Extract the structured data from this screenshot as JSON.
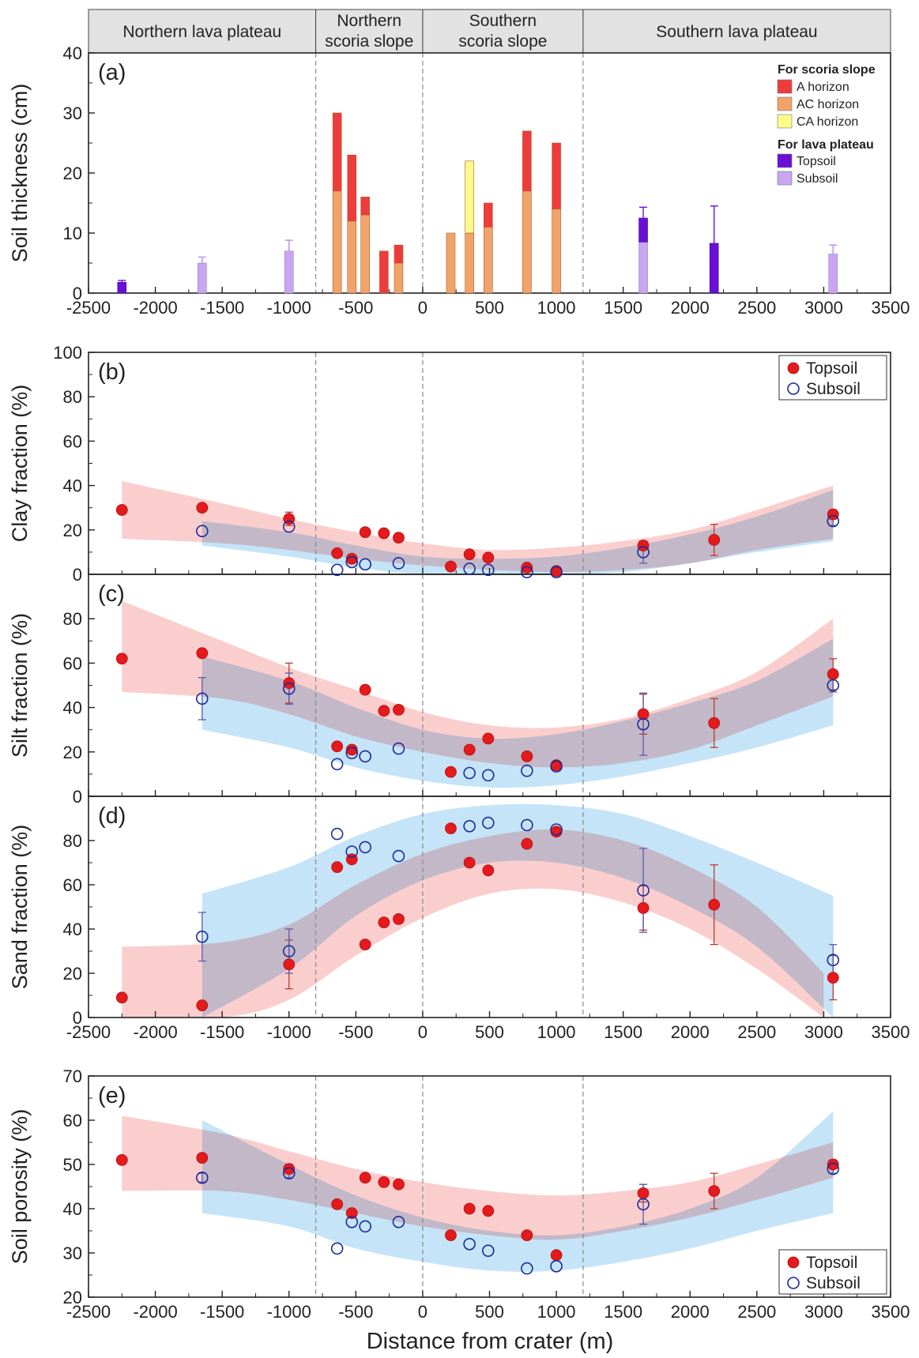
{
  "zones": [
    "Northern lava plateau",
    "Northern\nscoria slope",
    "Southern\nscoria slope",
    "Southern lava plateau"
  ],
  "x_label": "Distance from crater (m)",
  "colors": {
    "a_horizon": "#ee3b3b",
    "ac_horizon": "#f0a46a",
    "ca_horizon": "#fbfb8a",
    "topsoil_bar": "#6a0fd6",
    "subsoil_bar": "#c9a6f0",
    "topsoil_point": "#e41a1c",
    "subsoil_point": "#1a2a9a",
    "topsoil_band": "#f7a6a6",
    "subsoil_band": "#8ccaf2",
    "header_bg": "#e2e2e2"
  },
  "chart_data": [
    {
      "panel": "(a)",
      "type": "bar",
      "ylabel": "Soil thickness (cm)",
      "xlim": [
        -2500,
        3500
      ],
      "ylim": [
        0,
        40
      ],
      "xticks": [
        -2500,
        -2000,
        -1500,
        -1000,
        -500,
        0,
        500,
        1000,
        1500,
        2000,
        2500,
        3000,
        3500
      ],
      "yticks": [
        0,
        10,
        20,
        30,
        40
      ],
      "legend": {
        "placement": "top-right",
        "group1_title": "For scoria slope",
        "group1": [
          "A horizon",
          "AC horizon",
          "CA horizon"
        ],
        "group2_title": "For lava plateau",
        "group2": [
          "Topsoil",
          "Subsoil"
        ]
      },
      "scoria_bars": [
        {
          "x": -640,
          "A": 13,
          "AC": 17,
          "CA": 0
        },
        {
          "x": -530,
          "A": 11,
          "AC": 12,
          "CA": 0
        },
        {
          "x": -430,
          "A": 3,
          "AC": 13,
          "CA": 0
        },
        {
          "x": -290,
          "A": 7,
          "AC": 0,
          "CA": 0
        },
        {
          "x": -180,
          "A": 3,
          "AC": 5,
          "CA": 0
        },
        {
          "x": 210,
          "A": 0,
          "AC": 10,
          "CA": 0
        },
        {
          "x": 350,
          "A": 0,
          "AC": 10,
          "CA": 12
        },
        {
          "x": 490,
          "A": 4,
          "AC": 11,
          "CA": 0
        },
        {
          "x": 780,
          "A": 10,
          "AC": 17,
          "CA": 0
        },
        {
          "x": 1000,
          "A": 11,
          "AC": 14,
          "CA": 0
        }
      ],
      "plateau_bars": [
        {
          "x": -2250,
          "topsoil": 1.8,
          "subsoil": 0,
          "err": 0.3
        },
        {
          "x": -1650,
          "topsoil": 0,
          "subsoil": 5,
          "err": 1.0
        },
        {
          "x": -1000,
          "topsoil": 0,
          "subsoil": 7,
          "err": 1.8
        },
        {
          "x": 1650,
          "topsoil": 4,
          "subsoil": 8.5,
          "err": 1.8
        },
        {
          "x": 2180,
          "topsoil": 8.3,
          "subsoil": 0,
          "err": 6.2
        },
        {
          "x": 3070,
          "topsoil": 0,
          "subsoil": 6.5,
          "err": 1.5
        }
      ]
    },
    {
      "panel": "(b)",
      "type": "scatter",
      "ylabel": "Clay fraction (%)",
      "ylim": [
        0,
        100
      ],
      "yticks": [
        0,
        20,
        40,
        60,
        80,
        100
      ],
      "legend": {
        "placement": "top-right",
        "entries": [
          "Topsoil",
          "Subsoil"
        ]
      },
      "topsoil": [
        [
          -2250,
          29
        ],
        [
          -1650,
          30
        ],
        [
          -1000,
          25
        ],
        [
          -640,
          9.5
        ],
        [
          -530,
          7
        ],
        [
          -430,
          19
        ],
        [
          -290,
          18.5
        ],
        [
          -180,
          16.5
        ],
        [
          210,
          3.5
        ],
        [
          350,
          9
        ],
        [
          490,
          7.5
        ],
        [
          780,
          3
        ],
        [
          1000,
          1.5
        ],
        [
          1650,
          13
        ],
        [
          2180,
          15.5
        ],
        [
          3070,
          27
        ]
      ],
      "subsoil": [
        [
          -1650,
          19.5
        ],
        [
          -1000,
          21.5
        ],
        [
          -640,
          2
        ],
        [
          -530,
          5.5
        ],
        [
          -430,
          4.5
        ],
        [
          -180,
          5
        ],
        [
          350,
          2.5
        ],
        [
          490,
          2
        ],
        [
          780,
          1
        ],
        [
          1000,
          1
        ],
        [
          1650,
          10
        ],
        [
          3070,
          24
        ]
      ],
      "topsoil_err": [
        [
          -1000,
          3
        ],
        [
          1650,
          2
        ],
        [
          2180,
          7
        ],
        [
          3070,
          2
        ]
      ],
      "subsoil_err": [
        [
          1650,
          5
        ],
        [
          3070,
          2
        ]
      ],
      "topsoil_band": {
        "x": [
          -2250,
          -1500,
          -1000,
          -500,
          0,
          500,
          1000,
          1500,
          2000,
          2500,
          3070
        ],
        "lo": [
          16,
          14,
          11,
          7,
          4,
          2,
          1,
          2,
          5,
          11,
          16
        ],
        "hi": [
          42,
          32,
          25,
          19,
          14,
          11,
          12,
          15,
          20,
          29,
          40
        ]
      },
      "subsoil_band": {
        "x": [
          -1650,
          -1000,
          -500,
          0,
          500,
          1000,
          1500,
          2000,
          2500,
          3070
        ],
        "lo": [
          13,
          8,
          3,
          0,
          -2,
          -1,
          1,
          5,
          10,
          15
        ],
        "hi": [
          24,
          19,
          13,
          8,
          7,
          8,
          12,
          18,
          26,
          38
        ]
      }
    },
    {
      "panel": "(c)",
      "type": "scatter",
      "ylabel": "Silt fraction (%)",
      "ylim": [
        0,
        100
      ],
      "yticks": [
        0,
        20,
        40,
        60,
        80
      ],
      "topsoil": [
        [
          -2250,
          62
        ],
        [
          -1650,
          64.5
        ],
        [
          -1000,
          51
        ],
        [
          -640,
          22.5
        ],
        [
          -530,
          21
        ],
        [
          -430,
          48
        ],
        [
          -290,
          38.5
        ],
        [
          -180,
          39
        ],
        [
          210,
          11
        ],
        [
          350,
          21
        ],
        [
          490,
          26
        ],
        [
          780,
          18
        ],
        [
          1000,
          14
        ],
        [
          1650,
          37
        ],
        [
          2180,
          33
        ],
        [
          3070,
          55
        ]
      ],
      "subsoil": [
        [
          -1650,
          44
        ],
        [
          -1000,
          48.5
        ],
        [
          -640,
          14.5
        ],
        [
          -530,
          19.5
        ],
        [
          -430,
          18
        ],
        [
          -180,
          21.5
        ],
        [
          350,
          10.5
        ],
        [
          490,
          9.5
        ],
        [
          780,
          11.5
        ],
        [
          1000,
          13.5
        ],
        [
          1650,
          32.5
        ],
        [
          3070,
          50
        ]
      ],
      "topsoil_err": [
        [
          -1000,
          9
        ],
        [
          1650,
          9
        ],
        [
          2180,
          11
        ],
        [
          3070,
          7
        ]
      ],
      "subsoil_err": [
        [
          -1650,
          9.5
        ],
        [
          -1000,
          7
        ],
        [
          1650,
          14
        ],
        [
          3070,
          3
        ]
      ],
      "topsoil_band": {
        "x": [
          -2250,
          -1500,
          -1000,
          -500,
          0,
          500,
          1000,
          1500,
          2000,
          2500,
          3070
        ],
        "lo": [
          47,
          44,
          37,
          27,
          20,
          15,
          13,
          15,
          21,
          32,
          45
        ],
        "hi": [
          88,
          70,
          58,
          48,
          38,
          32,
          31,
          35,
          44,
          56,
          80
        ]
      },
      "subsoil_band": {
        "x": [
          -1650,
          -1000,
          -500,
          0,
          500,
          1000,
          1500,
          2000,
          2500,
          3070
        ],
        "lo": [
          30,
          22,
          13,
          7,
          4,
          5,
          9,
          15,
          22,
          32
        ],
        "hi": [
          63,
          52,
          40,
          30,
          26,
          28,
          34,
          42,
          52,
          71
        ]
      }
    },
    {
      "panel": "(d)",
      "type": "scatter",
      "ylabel": "Sand fraction (%)",
      "ylim": [
        0,
        100
      ],
      "yticks": [
        0,
        20,
        40,
        60,
        80
      ],
      "topsoil": [
        [
          -2250,
          9
        ],
        [
          -1650,
          5.5
        ],
        [
          -1000,
          24
        ],
        [
          -640,
          68
        ],
        [
          -530,
          71.5
        ],
        [
          -430,
          33
        ],
        [
          -290,
          43
        ],
        [
          -180,
          44.5
        ],
        [
          210,
          85.5
        ],
        [
          350,
          70
        ],
        [
          490,
          66.5
        ],
        [
          780,
          78.5
        ],
        [
          1000,
          84
        ],
        [
          1650,
          49.5
        ],
        [
          2180,
          51
        ],
        [
          3070,
          18
        ]
      ],
      "subsoil": [
        [
          -1650,
          36.5
        ],
        [
          -1000,
          30
        ],
        [
          -640,
          83
        ],
        [
          -530,
          75
        ],
        [
          -430,
          77
        ],
        [
          -180,
          73
        ],
        [
          350,
          86.5
        ],
        [
          490,
          88
        ],
        [
          780,
          87
        ],
        [
          1000,
          85
        ],
        [
          1650,
          57.5
        ],
        [
          3070,
          26
        ]
      ],
      "topsoil_err": [
        [
          -1000,
          11
        ],
        [
          1650,
          10
        ],
        [
          2180,
          18
        ],
        [
          3070,
          10
        ]
      ],
      "subsoil_err": [
        [
          -1650,
          11
        ],
        [
          -1000,
          10
        ],
        [
          1650,
          19
        ],
        [
          3070,
          7
        ]
      ],
      "topsoil_band": {
        "x": [
          -2250,
          -1500,
          -1000,
          -500,
          0,
          500,
          1000,
          1500,
          2000,
          2500,
          3000
        ],
        "lo": [
          0,
          0,
          8,
          28,
          45,
          56,
          58,
          52,
          40,
          22,
          0
        ],
        "hi": [
          32,
          34,
          42,
          60,
          74,
          82,
          85,
          80,
          68,
          50,
          20
        ]
      },
      "subsoil_band": {
        "x": [
          -1650,
          -1000,
          -500,
          0,
          500,
          1000,
          1500,
          2000,
          2500,
          3070
        ],
        "lo": [
          0,
          22,
          46,
          62,
          70,
          70,
          63,
          50,
          32,
          0
        ],
        "hi": [
          56,
          68,
          82,
          92,
          96,
          96,
          92,
          82,
          70,
          55
        ]
      }
    },
    {
      "panel": "(e)",
      "type": "scatter",
      "ylabel": "Soil porosity (%)",
      "ylim": [
        20,
        70
      ],
      "yticks": [
        20,
        30,
        40,
        50,
        60,
        70
      ],
      "legend": {
        "placement": "bottom-right",
        "entries": [
          "Topsoil",
          "Subsoil"
        ]
      },
      "topsoil": [
        [
          -2250,
          51
        ],
        [
          -1650,
          51.5
        ],
        [
          -1000,
          49
        ],
        [
          -640,
          41
        ],
        [
          -530,
          39
        ],
        [
          -430,
          47
        ],
        [
          -290,
          46
        ],
        [
          -180,
          45.5
        ],
        [
          210,
          34
        ],
        [
          350,
          40
        ],
        [
          490,
          39.5
        ],
        [
          780,
          34
        ],
        [
          1000,
          29.5
        ],
        [
          1650,
          43.5
        ],
        [
          2180,
          44
        ],
        [
          3070,
          50
        ]
      ],
      "subsoil": [
        [
          -1650,
          47
        ],
        [
          -1000,
          48
        ],
        [
          -640,
          31
        ],
        [
          -530,
          37
        ],
        [
          -430,
          36
        ],
        [
          -180,
          37
        ],
        [
          350,
          32
        ],
        [
          490,
          30.5
        ],
        [
          780,
          26.5
        ],
        [
          1000,
          27
        ],
        [
          1650,
          41
        ],
        [
          3070,
          49
        ]
      ],
      "topsoil_err": [
        [
          -1000,
          1
        ],
        [
          1650,
          2
        ],
        [
          2180,
          4
        ],
        [
          3070,
          1
        ]
      ],
      "subsoil_err": [
        [
          -1650,
          1
        ],
        [
          -1000,
          1
        ],
        [
          1650,
          4.5
        ],
        [
          3070,
          1
        ]
      ],
      "topsoil_band": {
        "x": [
          -2250,
          -1500,
          -1000,
          -500,
          0,
          500,
          1000,
          1500,
          2000,
          2500,
          3070
        ],
        "lo": [
          44,
          44,
          42,
          39,
          36,
          34,
          33,
          35,
          38,
          42,
          47
        ],
        "hi": [
          61,
          57,
          53,
          49,
          46,
          44,
          43,
          44,
          46,
          50,
          55
        ]
      },
      "subsoil_band": {
        "x": [
          -1650,
          -1000,
          -500,
          0,
          500,
          1000,
          1500,
          2000,
          2500,
          3070
        ],
        "lo": [
          39,
          36,
          31,
          28,
          26,
          26,
          28,
          31,
          35,
          39
        ],
        "hi": [
          60,
          50,
          43,
          38,
          35,
          34,
          36,
          40,
          47,
          62
        ]
      }
    }
  ]
}
